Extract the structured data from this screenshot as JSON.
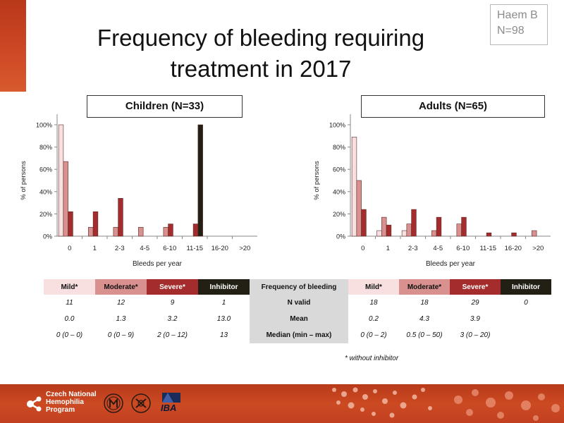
{
  "slide": {
    "title_line1": "Frequency of bleeding requiring",
    "title_line2": "treatment in 2017",
    "badge_line1": "Haem B",
    "badge_line2": "N=98",
    "footnote": "* without inhibitor"
  },
  "chart_data": [
    {
      "type": "bar",
      "title": "Children (N=33)",
      "xlabel": "Bleeds per year",
      "ylabel": "% of persons",
      "ylim": [
        0,
        100
      ],
      "yticks": [
        "0%",
        "20%",
        "40%",
        "60%",
        "80%",
        "100%"
      ],
      "categories": [
        "0",
        "1",
        "2-3",
        "4-5",
        "6-10",
        "11-15",
        "16-20",
        ">20"
      ],
      "series": [
        {
          "name": "Mild*",
          "color": "#f8e0e0",
          "values": [
            100,
            0,
            0,
            0,
            0,
            0,
            0,
            0
          ]
        },
        {
          "name": "Moderate*",
          "color": "#d9918f",
          "values": [
            67,
            8,
            8,
            8,
            8,
            0,
            0,
            0
          ]
        },
        {
          "name": "Severe*",
          "color": "#a52c2c",
          "values": [
            22,
            22,
            34,
            0,
            11,
            11,
            0,
            0
          ]
        },
        {
          "name": "Inhibitor",
          "color": "#222014",
          "values": [
            0,
            0,
            0,
            0,
            0,
            100,
            0,
            0
          ]
        }
      ]
    },
    {
      "type": "bar",
      "title": "Adults (N=65)",
      "xlabel": "Bleeds per year",
      "ylabel": "% of persons",
      "ylim": [
        0,
        100
      ],
      "yticks": [
        "0%",
        "20%",
        "40%",
        "60%",
        "80%",
        "100%"
      ],
      "categories": [
        "0",
        "1",
        "2-3",
        "4-5",
        "6-10",
        "11-15",
        "16-20",
        ">20"
      ],
      "series": [
        {
          "name": "Mild*",
          "color": "#f8e0e0",
          "values": [
            89,
            5,
            5,
            0,
            0,
            0,
            0,
            0
          ]
        },
        {
          "name": "Moderate*",
          "color": "#d9918f",
          "values": [
            50,
            17,
            11,
            5,
            11,
            0,
            0,
            5
          ]
        },
        {
          "name": "Severe*",
          "color": "#a52c2c",
          "values": [
            24,
            10,
            24,
            17,
            17,
            3,
            3,
            0
          ]
        },
        {
          "name": "Inhibitor",
          "color": "#222014",
          "values": [
            0,
            0,
            0,
            0,
            0,
            0,
            0,
            0
          ]
        }
      ]
    }
  ],
  "table": {
    "headers_children": [
      "Mild*",
      "Moderate*",
      "Severe*",
      "Inhibitor"
    ],
    "header_middle": "Frequency of bleeding",
    "headers_adults": [
      "Mild*",
      "Moderate*",
      "Severe*",
      "Inhibitor"
    ],
    "rows": [
      {
        "label": "N valid",
        "children": [
          "11",
          "12",
          "9",
          "1"
        ],
        "adults": [
          "18",
          "18",
          "29",
          "0"
        ]
      },
      {
        "label": "Mean",
        "children": [
          "0.0",
          "1.3",
          "3.2",
          "13.0"
        ],
        "adults": [
          "0.2",
          "4.3",
          "3.9",
          ""
        ]
      },
      {
        "label": "Median (min – max)",
        "children": [
          "0 (0 – 0)",
          "0 (0 – 9)",
          "2 (0 – 12)",
          "13"
        ],
        "adults": [
          "0 (0 – 2)",
          "0.5 (0 – 50)",
          "3 (0 – 20)",
          ""
        ]
      }
    ]
  },
  "footer": {
    "logo_line1": "Czech National",
    "logo_line2": "Hemophilia",
    "logo_line3": "Program",
    "iba_label": "IBA"
  },
  "colors": {
    "accent": "#c8441f",
    "mild": "#f8e0e0",
    "moderate": "#d9918f",
    "severe": "#a52c2c",
    "inhibitor": "#222014",
    "table_middle": "#d9d9d9"
  }
}
